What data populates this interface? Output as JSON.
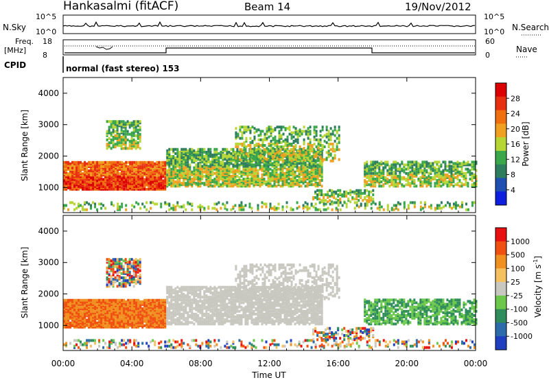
{
  "header": {
    "station": "Hankasalmi (fitACF)",
    "beam": "Beam 14",
    "date": "19/Nov/2012"
  },
  "side_labels": {
    "nsky": "N.Sky",
    "freq": "Freq.",
    "freq_unit": "[MHz]",
    "cpid": "CPID",
    "nsearch": "N.Search",
    "nave": "Nave"
  },
  "aux_ticks": {
    "noise_top": "10^5",
    "noise_bottom": "10^0",
    "freq_top": "18",
    "freq_bottom": "8",
    "nave_top": "60",
    "nave_bottom": "0"
  },
  "cpid_text": "normal (fast stereo) 153",
  "colors": {
    "power_scale": [
      "#0f1fe0",
      "#1f4fb0",
      "#2e7d5e",
      "#3aa84a",
      "#b6d636",
      "#f0a020",
      "#f07010",
      "#e83010",
      "#dd0000"
    ],
    "velocity_scale": [
      "#1f3fc0",
      "#2c6cab",
      "#2e8d5a",
      "#6cc84a",
      "#c8c8c0",
      "#f5c060",
      "#f09020",
      "#f05010",
      "#e81010"
    ]
  },
  "chart_data": [
    {
      "type": "heatmap",
      "title": "Power",
      "xlabel": "Time UT",
      "ylabel": "Slant Range [km]",
      "x_ticks": [
        "00:00",
        "04:00",
        "08:00",
        "12:00",
        "16:00",
        "20:00",
        "00:00"
      ],
      "xlim_hours": [
        0,
        24
      ],
      "ylim": [
        200,
        4500
      ],
      "y_ticks": [
        1000,
        2000,
        3000,
        4000
      ],
      "colorbar": {
        "label": "Power [dB]",
        "ticks": [
          4,
          8,
          12,
          16,
          20,
          24,
          28
        ],
        "range": [
          0,
          32
        ]
      }
    },
    {
      "type": "heatmap",
      "title": "Velocity",
      "xlabel": "Time UT",
      "ylabel": "Slant Range [km]",
      "x_ticks": [
        "00:00",
        "04:00",
        "08:00",
        "12:00",
        "16:00",
        "20:00",
        "00:00"
      ],
      "xlim_hours": [
        0,
        24
      ],
      "ylim": [
        200,
        4500
      ],
      "y_ticks": [
        1000,
        2000,
        3000,
        4000
      ],
      "colorbar": {
        "label": "Velocity [m s-1]",
        "ticks": [
          1000,
          500,
          100,
          25,
          -25,
          -100,
          -500,
          -1000
        ]
      }
    }
  ]
}
